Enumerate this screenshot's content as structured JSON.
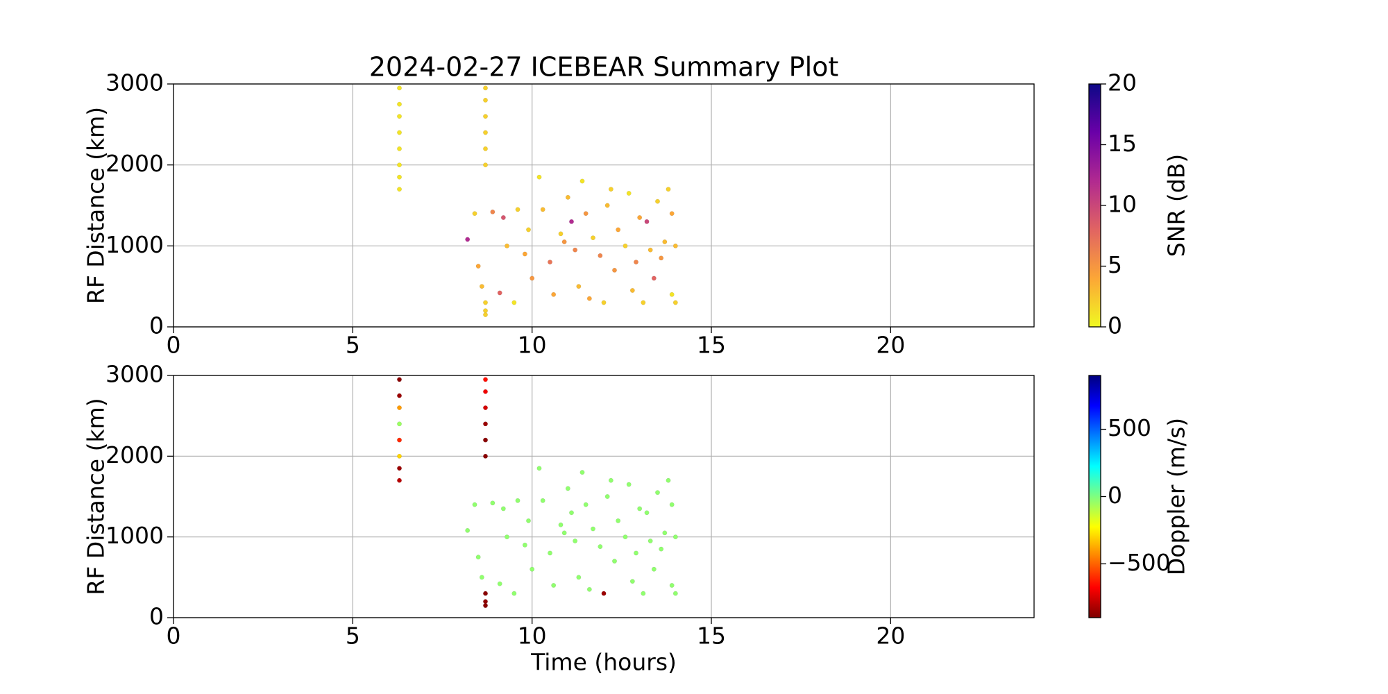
{
  "chart_data": [
    {
      "type": "scatter",
      "title": "2024-02-27 ICEBEAR Summary Plot",
      "ylabel": "RF Distance (km)",
      "x": [
        6.3,
        6.3,
        6.3,
        6.3,
        6.3,
        6.3,
        6.3,
        6.3,
        8.7,
        8.7,
        8.7,
        8.7,
        8.7,
        8.7,
        8.7,
        8.7,
        8.7,
        8.2,
        8.4,
        8.5,
        8.6,
        8.9,
        9.1,
        9.2,
        9.3,
        9.5,
        9.6,
        9.8,
        9.9,
        10.0,
        10.2,
        10.3,
        10.5,
        10.6,
        10.8,
        11.0,
        11.1,
        11.2,
        11.3,
        11.4,
        11.5,
        11.6,
        11.7,
        11.9,
        12.0,
        12.1,
        12.3,
        12.4,
        12.6,
        12.7,
        12.8,
        12.9,
        13.0,
        13.1,
        13.2,
        13.3,
        13.4,
        13.5,
        13.6,
        13.7,
        13.8,
        13.9,
        13.9,
        14.0,
        14.0,
        12.2,
        10.9
      ],
      "y": [
        1700,
        1850,
        2000,
        2200,
        2400,
        2600,
        2750,
        2950,
        2000,
        2200,
        2400,
        2600,
        2800,
        2950,
        150,
        200,
        300,
        1080,
        1400,
        750,
        500,
        1420,
        420,
        1350,
        1000,
        300,
        1450,
        900,
        1200,
        600,
        1850,
        1450,
        800,
        400,
        1150,
        1600,
        1300,
        950,
        500,
        1800,
        1400,
        350,
        1100,
        880,
        300,
        1500,
        700,
        1200,
        1000,
        1650,
        450,
        800,
        1350,
        300,
        1300,
        950,
        600,
        1550,
        850,
        1050,
        1700,
        400,
        1400,
        300,
        1000,
        1700,
        1050
      ],
      "c": [
        1,
        1,
        1,
        1,
        1,
        1,
        1,
        1,
        2,
        2,
        2,
        2,
        2,
        2,
        2,
        2,
        2,
        12,
        2,
        4,
        3,
        6,
        8,
        9,
        3,
        1,
        2,
        4,
        2,
        5,
        1,
        3,
        7,
        4,
        2,
        3,
        12,
        6,
        3,
        1,
        5,
        4,
        2,
        6,
        2,
        3,
        5,
        4,
        2,
        1,
        3,
        6,
        4,
        2,
        10,
        3,
        8,
        2,
        5,
        3,
        2,
        1,
        4,
        2,
        3,
        2,
        5
      ],
      "xlim": [
        0,
        24
      ],
      "xticks": [
        0,
        5,
        10,
        15,
        20
      ],
      "ylim": [
        0,
        3000
      ],
      "yticks": [
        0,
        1000,
        2000,
        3000
      ],
      "grid": true,
      "colorbar": {
        "label": "SNR (dB)",
        "lim": [
          0,
          20
        ],
        "ticks": [
          0,
          5,
          10,
          15,
          20
        ],
        "colors": [
          "#f0f921",
          "#fca636",
          "#e16462",
          "#b12a90",
          "#6a00a8",
          "#0d0887"
        ]
      }
    },
    {
      "type": "scatter",
      "ylabel": "RF Distance (km)",
      "xlabel": "Time (hours)",
      "x": [
        6.3,
        6.3,
        6.3,
        6.3,
        6.3,
        6.3,
        6.3,
        6.3,
        8.7,
        8.7,
        8.7,
        8.7,
        8.7,
        8.7,
        8.7,
        8.7,
        8.7,
        8.2,
        8.4,
        8.5,
        8.6,
        8.9,
        9.1,
        9.2,
        9.3,
        9.5,
        9.6,
        9.8,
        9.9,
        10.0,
        10.2,
        10.3,
        10.5,
        10.6,
        10.8,
        11.0,
        11.1,
        11.2,
        11.3,
        11.4,
        11.5,
        11.6,
        11.7,
        11.9,
        12.0,
        12.1,
        12.3,
        12.4,
        12.6,
        12.7,
        12.8,
        12.9,
        13.0,
        13.1,
        13.2,
        13.3,
        13.4,
        13.5,
        13.6,
        13.7,
        13.8,
        13.9,
        13.9,
        14.0,
        14.0,
        12.2,
        10.9
      ],
      "y": [
        1700,
        1850,
        2000,
        2200,
        2400,
        2600,
        2750,
        2950,
        2000,
        2200,
        2400,
        2600,
        2800,
        2950,
        150,
        200,
        300,
        1080,
        1400,
        750,
        500,
        1420,
        420,
        1350,
        1000,
        300,
        1450,
        900,
        1200,
        600,
        1850,
        1450,
        800,
        400,
        1150,
        1600,
        1300,
        950,
        500,
        1800,
        1400,
        350,
        1100,
        880,
        300,
        1500,
        700,
        1200,
        1000,
        1650,
        450,
        800,
        1350,
        300,
        1300,
        950,
        600,
        1550,
        850,
        1050,
        1700,
        400,
        1400,
        300,
        1000,
        1700,
        1050
      ],
      "c": [
        -800,
        -850,
        -300,
        -600,
        -50,
        -400,
        -850,
        -880,
        -880,
        -880,
        -850,
        -750,
        -700,
        -650,
        -880,
        -870,
        -880,
        -30,
        -30,
        -30,
        -30,
        -30,
        -30,
        -30,
        -30,
        -30,
        -30,
        -30,
        -30,
        -30,
        -30,
        -30,
        -30,
        -30,
        -30,
        -30,
        -30,
        -30,
        -30,
        -30,
        -30,
        -30,
        -30,
        -30,
        -850,
        -30,
        -30,
        -30,
        -30,
        -30,
        -30,
        -30,
        -30,
        -30,
        -30,
        -30,
        -30,
        -30,
        -30,
        -30,
        -30,
        -30,
        -30,
        -30,
        -30,
        -30,
        -30
      ],
      "xlim": [
        0,
        24
      ],
      "xticks": [
        0,
        5,
        10,
        15,
        20
      ],
      "ylim": [
        0,
        3000
      ],
      "yticks": [
        0,
        1000,
        2000,
        3000
      ],
      "grid": true,
      "colorbar": {
        "label": "Doppler (m/s)",
        "lim": [
          -900,
          900
        ],
        "ticks": [
          {
            "value": -500,
            "label": "−500"
          },
          0,
          500
        ],
        "colors": [
          "#7f0000",
          "#ff0000",
          "#ff7f00",
          "#ffff00",
          "#7fff7f",
          "#00ffff",
          "#007fff",
          "#0000ff",
          "#00007f"
        ]
      }
    }
  ]
}
